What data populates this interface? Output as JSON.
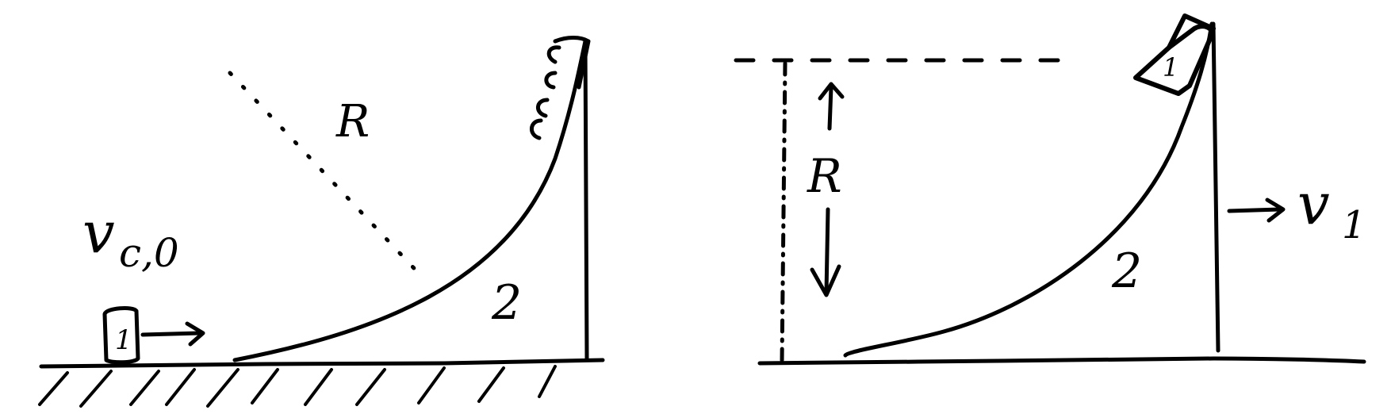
{
  "left_panel": {
    "velocity_label": "v",
    "velocity_subscript": "c,0",
    "block_label": "1",
    "radius_label": "R",
    "ramp_label": "2"
  },
  "right_panel": {
    "height_label": "R",
    "block_label": "1",
    "ramp_label": "2",
    "velocity_label": "v",
    "velocity_subscript": "1"
  }
}
